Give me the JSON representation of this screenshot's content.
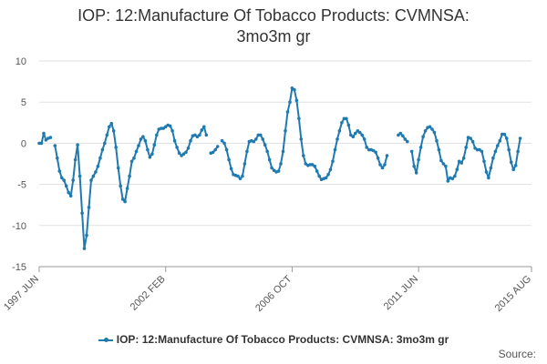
{
  "chart_data": {
    "type": "line",
    "title_line1": "IOP: 12:Manufacture Of Tobacco Products: CVMNSA:",
    "title_line2": "3mo3m gr",
    "xlabel": "",
    "ylabel": "",
    "ylim": [
      -15,
      10
    ],
    "yticks": [
      "10",
      "5",
      "0",
      "-5",
      "-10",
      "-15"
    ],
    "ytick_values": [
      10,
      5,
      0,
      -5,
      -10,
      -15
    ],
    "xticks": [
      {
        "label": "1997 JUN",
        "index": 0
      },
      {
        "label": "2002 FEB",
        "index": 56
      },
      {
        "label": "2006 OCT",
        "index": 112
      },
      {
        "label": "2011 JUN",
        "index": 168
      },
      {
        "label": "2015 AUG",
        "index": 218
      }
    ],
    "x_count": 219,
    "gridlines": "horizontal",
    "color": "#1f7ab0",
    "series": [
      {
        "name": "IOP: 12:Manufacture Of Tobacco Products: CVMNSA: 3mo3m gr",
        "values": [
          0,
          0,
          1.2,
          0.4,
          0.6,
          0.7,
          null,
          -0.3,
          -1.8,
          -3.4,
          -4.2,
          -4.5,
          -5.2,
          -6,
          -6.4,
          -4.5,
          -2,
          -0.2,
          -4,
          -8.5,
          -12.8,
          -11.2,
          -7.8,
          -4.5,
          -4,
          -3.5,
          -2.8,
          -1.8,
          -0.8,
          0,
          1,
          2,
          2.4,
          1.5,
          -0.5,
          -3,
          -5.2,
          -6.8,
          -7.1,
          -5.5,
          -4,
          -2.2,
          -1.8,
          -1,
          -0.3,
          0.5,
          0.8,
          0.3,
          -0.8,
          -1.7,
          -1.3,
          -0.2,
          1,
          1.7,
          1.8,
          1.8,
          2,
          2.2,
          2.1,
          1.5,
          0.3,
          -0.5,
          -1.2,
          -1.5,
          -1.3,
          -1.1,
          -0.6,
          0.3,
          0.9,
          1,
          0.8,
          1,
          1.6,
          2,
          1,
          null,
          -1.2,
          -1.1,
          -0.8,
          -0.4,
          null,
          0.3,
          0,
          -0.8,
          -2,
          -3.1,
          -3.8,
          -3.9,
          -4,
          -4.3,
          -4,
          -2.5,
          -1,
          0.2,
          0.3,
          0.2,
          0.5,
          1,
          1,
          0.5,
          -0.2,
          -1,
          -2,
          -3,
          -3.3,
          -3.5,
          -3.4,
          -2.5,
          -1,
          1.5,
          3.8,
          5,
          6.7,
          6.5,
          5.2,
          3,
          0.5,
          -1.5,
          -2.5,
          -2.7,
          -2.6,
          -2.6,
          -2.8,
          -3.4,
          -4,
          -4.4,
          -4.3,
          -4.2,
          -3.8,
          -3.2,
          -2.2,
          -0.8,
          0.5,
          1.5,
          2.5,
          3,
          3,
          2.2,
          1,
          0.8,
          1.2,
          1.5,
          1.3,
          1,
          0.5,
          -0.5,
          -0.8,
          -0.8,
          -0.9,
          -1.1,
          -1.8,
          -2.6,
          -3,
          -2.6,
          -1.5,
          null,
          null,
          null,
          null,
          1,
          1.2,
          0.9,
          0.5,
          0.2,
          null,
          -1,
          -2.8,
          -3.6,
          -2,
          -0.5,
          0.8,
          1.5,
          1.9,
          2,
          1.7,
          1.3,
          0.3,
          -0.8,
          -2.1,
          -2.5,
          -2.8,
          -4.6,
          -4.2,
          -4.3,
          -4,
          -3.2,
          -2.2,
          -2.4,
          -1.8,
          -0.5,
          0.7,
          0.6,
          0.2,
          -0.6,
          -0.8,
          -0.8,
          -1,
          -2.2,
          -3.5,
          -4.2,
          -3,
          -1.8,
          -1,
          -0.3,
          0.3,
          1.1,
          1.1,
          0.6,
          -0.8,
          -2.3,
          -3.2,
          -2.7,
          -1,
          0.6
        ]
      }
    ]
  },
  "legend": {
    "label": "IOP: 12:Manufacture Of Tobacco Products: CVMNSA: 3mo3m gr"
  },
  "source": {
    "label": "Source:"
  }
}
